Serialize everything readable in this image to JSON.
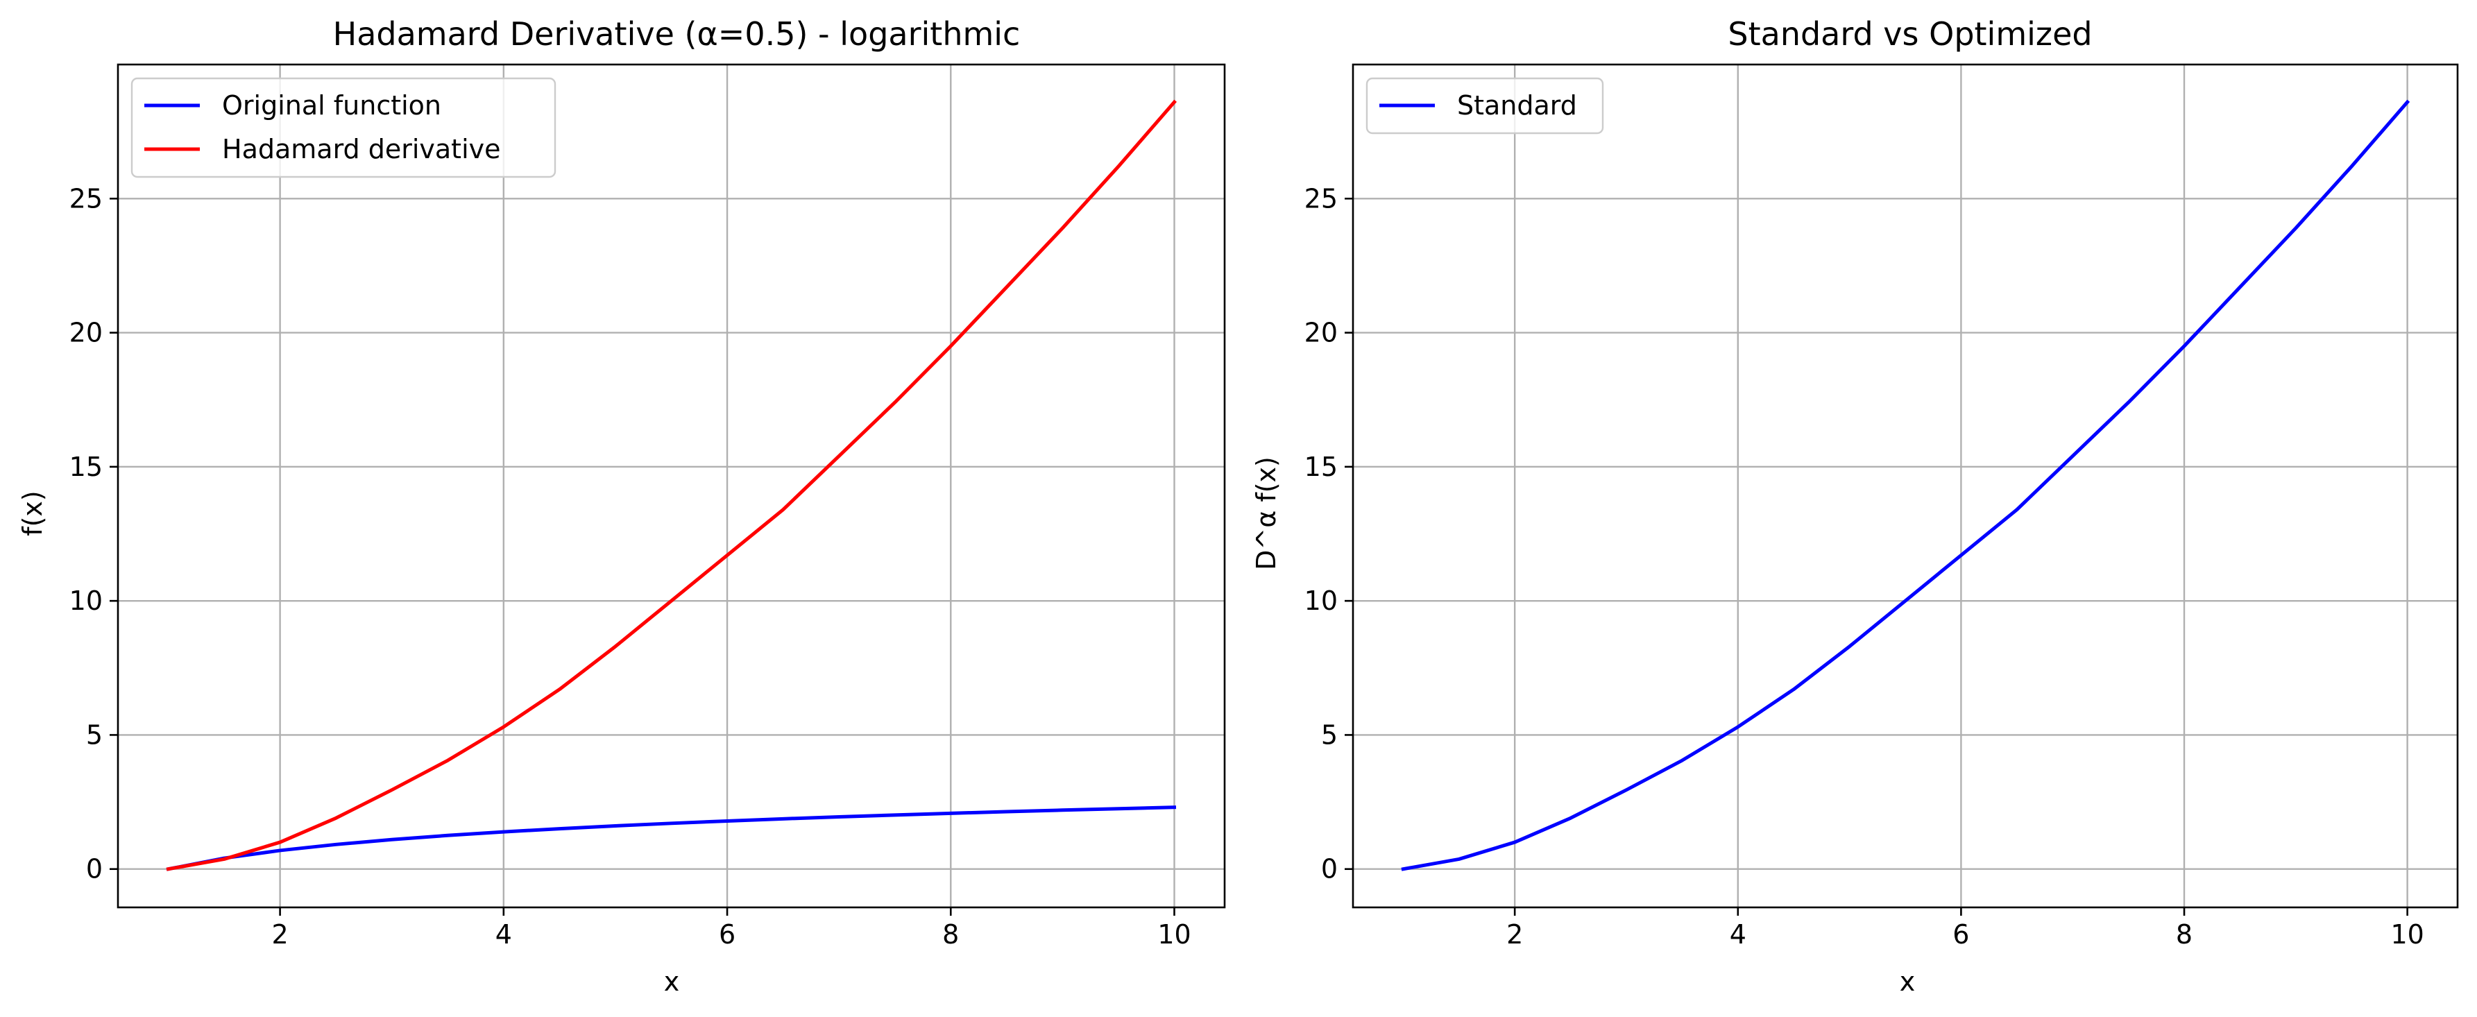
{
  "chart_data": [
    {
      "type": "line",
      "title": "Hadamard Derivative (α=0.5) - logarithmic",
      "xlabel": "x",
      "ylabel": "f(x)",
      "xlim": [
        0.55,
        10.45
      ],
      "ylim": [
        -1.43,
        30.0
      ],
      "xticks": [
        2,
        4,
        6,
        8,
        10
      ],
      "yticks": [
        0,
        5,
        10,
        15,
        20,
        25
      ],
      "xtick_labels": [
        "2",
        "4",
        "6",
        "8",
        "10"
      ],
      "ytick_labels": [
        "0",
        "5",
        "10",
        "15",
        "20",
        "25"
      ],
      "grid": true,
      "legend": "upper left",
      "x": [
        1,
        1.5,
        2,
        2.5,
        3,
        3.5,
        4,
        4.5,
        5,
        5.5,
        6,
        6.5,
        7,
        7.5,
        8,
        8.5,
        9,
        9.5,
        10
      ],
      "series": [
        {
          "name": "Original function",
          "color": "#0000ff",
          "values": [
            0,
            0.405,
            0.693,
            0.916,
            1.099,
            1.253,
            1.386,
            1.504,
            1.609,
            1.705,
            1.792,
            1.872,
            1.946,
            2.015,
            2.079,
            2.14,
            2.197,
            2.251,
            2.303
          ]
        },
        {
          "name": "Hadamard derivative",
          "color": "#ff0000",
          "values": [
            0,
            0.37,
            1.0,
            1.9,
            2.95,
            4.05,
            5.3,
            6.7,
            8.3,
            10.0,
            11.7,
            13.4,
            15.4,
            17.4,
            19.5,
            21.7,
            23.9,
            26.2,
            28.6
          ]
        }
      ]
    },
    {
      "type": "line",
      "title": "Standard vs Optimized",
      "xlabel": "x",
      "ylabel": "D^α f(x)",
      "xlim": [
        0.55,
        10.45
      ],
      "ylim": [
        -1.43,
        30.0
      ],
      "xticks": [
        2,
        4,
        6,
        8,
        10
      ],
      "yticks": [
        0,
        5,
        10,
        15,
        20,
        25
      ],
      "xtick_labels": [
        "2",
        "4",
        "6",
        "8",
        "10"
      ],
      "ytick_labels": [
        "0",
        "5",
        "10",
        "15",
        "20",
        "25"
      ],
      "grid": true,
      "legend": "upper left",
      "x": [
        1,
        1.5,
        2,
        2.5,
        3,
        3.5,
        4,
        4.5,
        5,
        5.5,
        6,
        6.5,
        7,
        7.5,
        8,
        8.5,
        9,
        9.5,
        10
      ],
      "series": [
        {
          "name": "Standard",
          "color": "#0000ff",
          "values": [
            0,
            0.37,
            1.0,
            1.9,
            2.95,
            4.05,
            5.3,
            6.7,
            8.3,
            10.0,
            11.7,
            13.4,
            15.4,
            17.4,
            19.5,
            21.7,
            23.9,
            26.2,
            28.6
          ]
        }
      ]
    }
  ]
}
